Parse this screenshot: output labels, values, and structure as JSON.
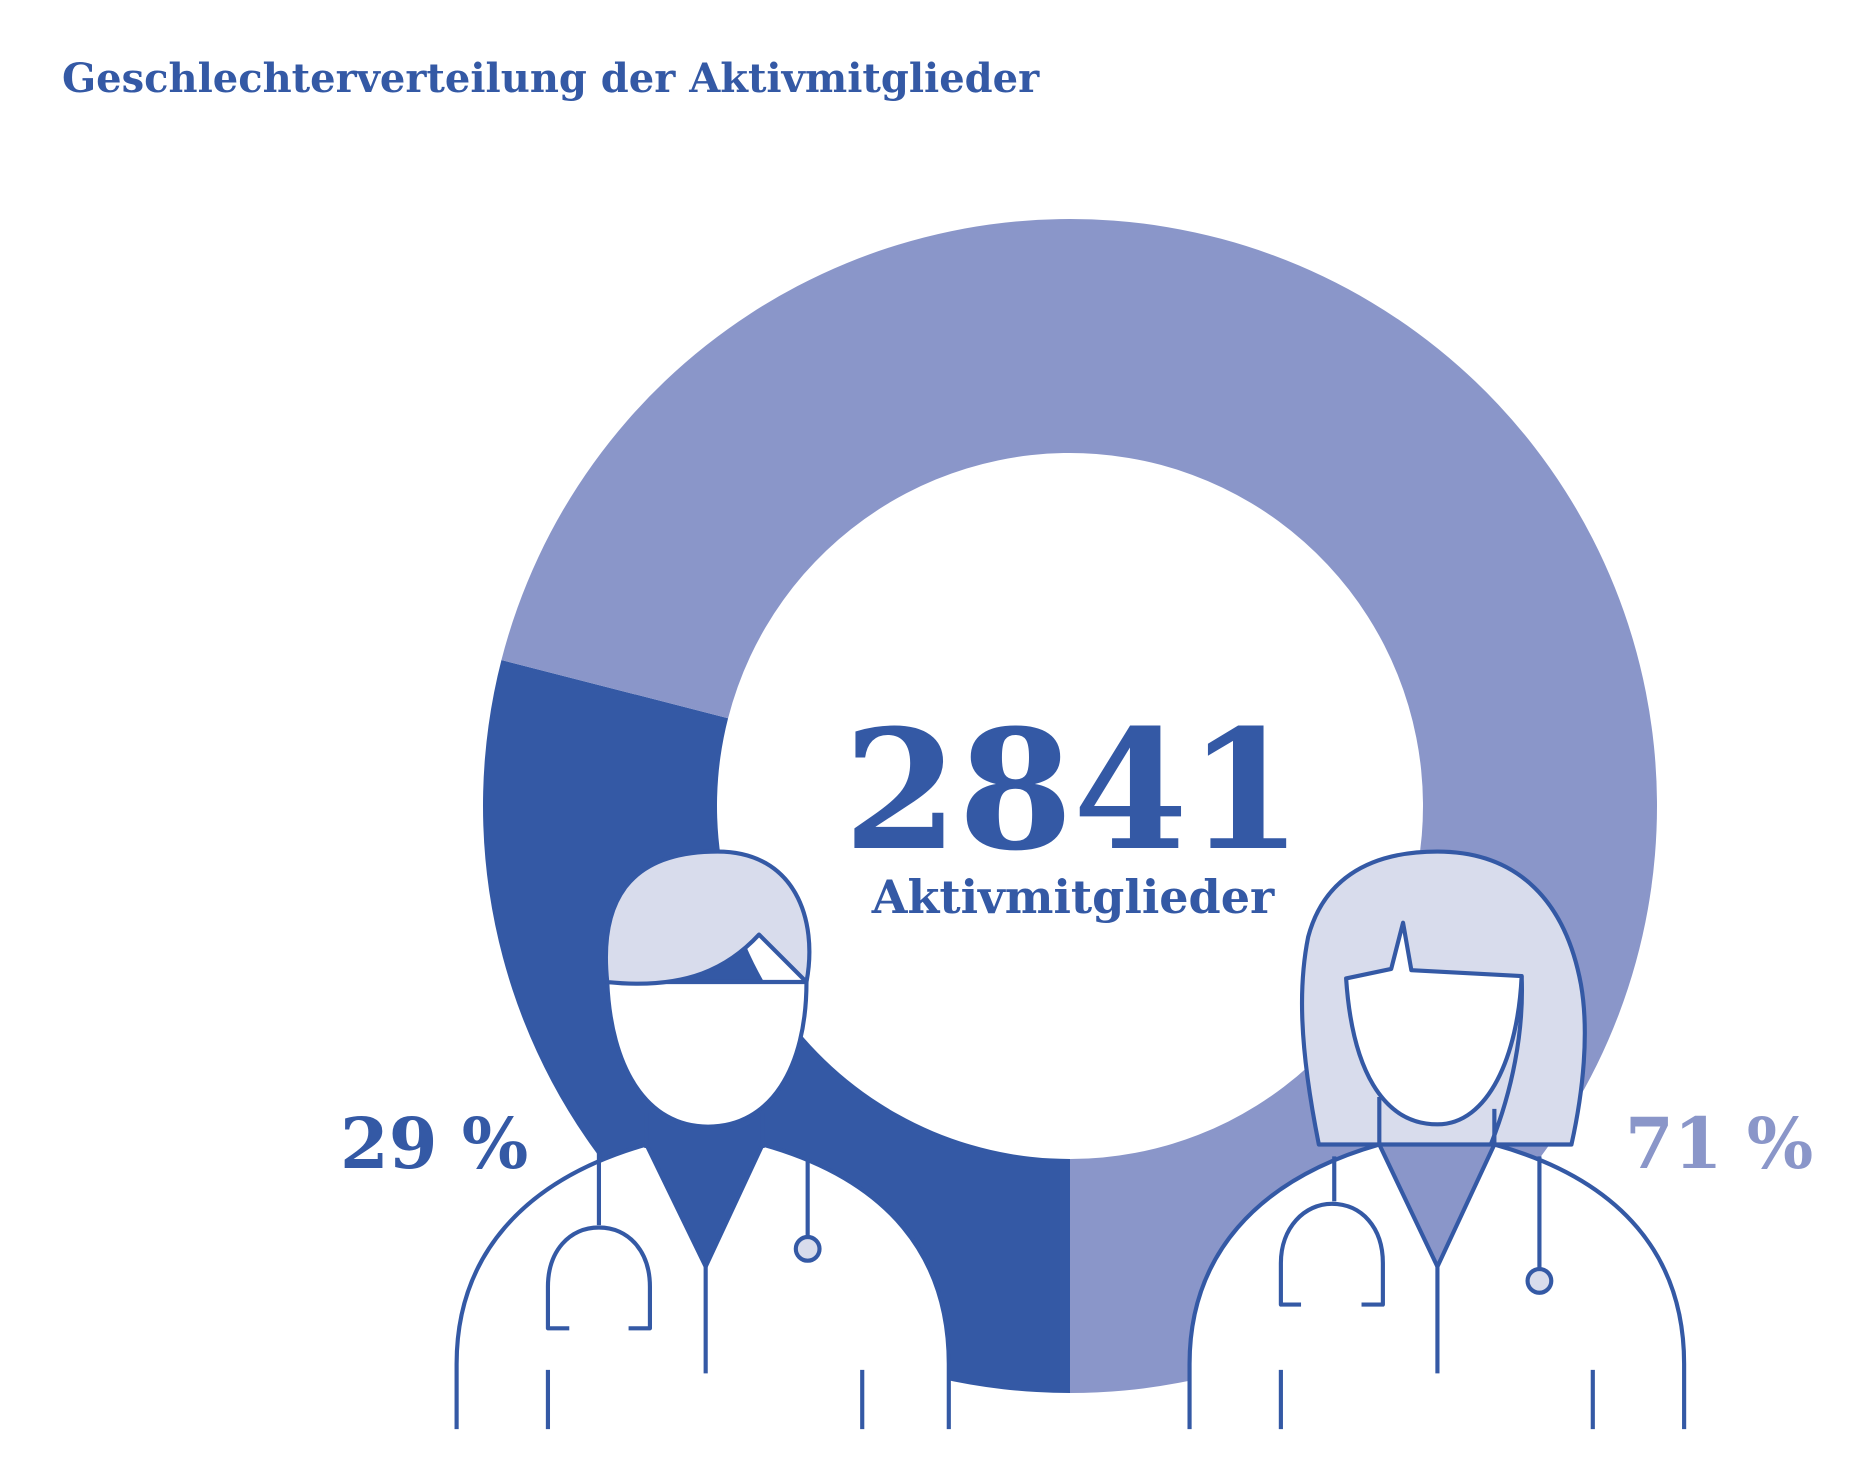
{
  "chart_data": {
    "type": "donut",
    "title": "Geschlechterverteilung der Aktivmitglieder",
    "categories": [
      null,
      null
    ],
    "values": [
      29,
      71
    ],
    "value_labels": [
      "29 %",
      "71 %"
    ],
    "colors": [
      "#3459a5",
      "#8a96c9"
    ],
    "center_value": 2841,
    "center_label": "Aktivmitglieder"
  }
}
